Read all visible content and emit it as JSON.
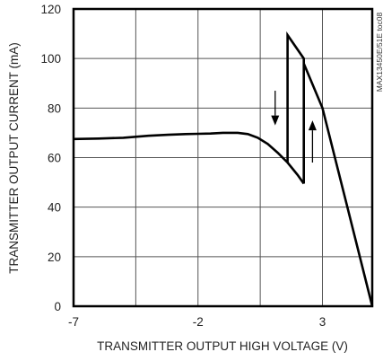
{
  "chart_data": {
    "type": "line",
    "xlabel": "TRANSMITTER OUTPUT HIGH VOLTAGE (V)",
    "ylabel": "TRANSMITTER OUTPUT CURRENT (mA)",
    "xlim": [
      -7,
      5
    ],
    "ylim": [
      0,
      120
    ],
    "x_ticks": [
      -7,
      -2,
      3
    ],
    "x_tick_labels": [
      "-7",
      "-2",
      "3"
    ],
    "y_ticks": [
      0,
      20,
      40,
      60,
      80,
      100,
      120
    ],
    "y_tick_labels": [
      "0",
      "20",
      "40",
      "60",
      "80",
      "100",
      "120"
    ],
    "x_grid": [
      -7,
      -4.5,
      -2,
      0.5,
      3,
      5
    ],
    "grid": true,
    "annotation": "MAX13450E/51E toc08",
    "series": [
      {
        "values": [
          {
            "x": -7.0,
            "y": 67.5
          },
          {
            "x": -6.0,
            "y": 67.7
          },
          {
            "x": -5.0,
            "y": 68.0
          },
          {
            "x": -4.0,
            "y": 68.8
          },
          {
            "x": -3.2,
            "y": 69.2
          },
          {
            "x": -2.5,
            "y": 69.5
          },
          {
            "x": -2.0,
            "y": 69.6
          },
          {
            "x": -1.5,
            "y": 69.7
          },
          {
            "x": -1.0,
            "y": 70.0
          },
          {
            "x": -0.4,
            "y": 70.0
          },
          {
            "x": 0.0,
            "y": 69.5
          },
          {
            "x": 0.4,
            "y": 68.0
          },
          {
            "x": 0.8,
            "y": 65.5
          },
          {
            "x": 1.2,
            "y": 62.0
          },
          {
            "x": 1.6,
            "y": 58.0
          },
          {
            "x": 2.0,
            "y": 53.0
          },
          {
            "x": 2.25,
            "y": 49.5
          }
        ]
      },
      {
        "values": [
          {
            "x": 1.6,
            "y": 58.0
          },
          {
            "x": 1.6,
            "y": 109.5
          },
          {
            "x": 2.25,
            "y": 100.0
          },
          {
            "x": 2.25,
            "y": 49.5
          },
          {
            "x": 2.25,
            "y": 98.0
          },
          {
            "x": 3.0,
            "y": 80.0
          },
          {
            "x": 4.0,
            "y": 40.0
          },
          {
            "x": 5.0,
            "y": 0.0
          }
        ]
      }
    ],
    "arrows": [
      {
        "x": 1.1,
        "y_from": 87,
        "y_to": 73
      },
      {
        "x": 2.6,
        "y_from": 58,
        "y_to": 75
      }
    ]
  }
}
